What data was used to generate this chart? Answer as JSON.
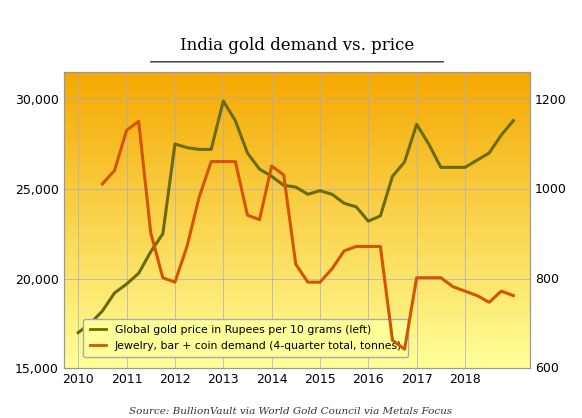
{
  "title": "India gold demand vs. price",
  "source": "Source: BullionVault via World Gold Council via Metals Focus",
  "left_label": "Global gold price in Rupees per 10 grams (left)",
  "right_label": "Jewelry, bar + coin demand (4-quarter total, tonnes)",
  "ylim_left": [
    15000,
    31500
  ],
  "ylim_right": [
    597,
    1260
  ],
  "yticks_left": [
    15000,
    20000,
    25000,
    30000
  ],
  "yticks_right": [
    600,
    800,
    1000,
    1200
  ],
  "xticks": [
    2010,
    2011,
    2012,
    2013,
    2014,
    2015,
    2016,
    2017,
    2018
  ],
  "xlim": [
    2009.7,
    2019.35
  ],
  "price_color": "#6b6b00",
  "demand_color": "#d45500",
  "price_x": [
    2010.0,
    2010.25,
    2010.5,
    2010.75,
    2011.0,
    2011.25,
    2011.5,
    2011.75,
    2012.0,
    2012.25,
    2012.5,
    2012.75,
    2013.0,
    2013.25,
    2013.5,
    2013.75,
    2014.0,
    2014.25,
    2014.5,
    2014.75,
    2015.0,
    2015.25,
    2015.5,
    2015.75,
    2016.0,
    2016.25,
    2016.5,
    2016.75,
    2017.0,
    2017.25,
    2017.5,
    2017.75,
    2018.0,
    2018.25,
    2018.5,
    2018.75,
    2019.0
  ],
  "price_y": [
    17000,
    17500,
    18200,
    19200,
    19700,
    20300,
    21500,
    22500,
    27500,
    27300,
    27200,
    27200,
    29900,
    28800,
    27000,
    26100,
    25700,
    25200,
    25100,
    24700,
    24900,
    24700,
    24200,
    24000,
    23200,
    23500,
    25700,
    26500,
    28600,
    27500,
    26200,
    26200,
    26200,
    26600,
    27000,
    28000,
    28800
  ],
  "demand_x": [
    2010.5,
    2010.75,
    2011.0,
    2011.25,
    2011.5,
    2011.75,
    2012.0,
    2012.25,
    2012.5,
    2012.75,
    2013.0,
    2013.25,
    2013.5,
    2013.75,
    2014.0,
    2014.25,
    2014.5,
    2014.75,
    2015.0,
    2015.25,
    2015.5,
    2015.75,
    2016.0,
    2016.25,
    2016.5,
    2016.75,
    2017.0,
    2017.25,
    2017.5,
    2017.75,
    2018.0,
    2018.25,
    2018.5,
    2018.75,
    2019.0
  ],
  "demand_y": [
    1010,
    1040,
    1130,
    1150,
    900,
    800,
    790,
    870,
    980,
    1060,
    1060,
    1060,
    940,
    930,
    1050,
    1030,
    830,
    790,
    790,
    820,
    860,
    870,
    870,
    870,
    660,
    640,
    800,
    800,
    800,
    780,
    770,
    760,
    745,
    770,
    760
  ],
  "background_top": "#f5a800",
  "background_bottom": "#ffff99",
  "grid_color": "#aaaacc"
}
